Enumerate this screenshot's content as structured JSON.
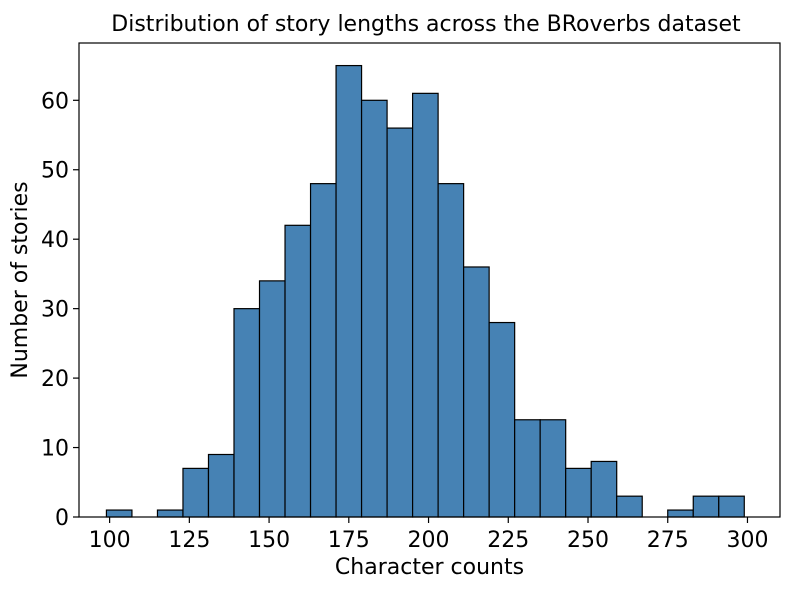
{
  "chart_data": {
    "type": "bar",
    "title": "Distribution of story lengths across the BRoverbs dataset",
    "xlabel": "Character counts",
    "ylabel": "Number of stories",
    "xlim": [
      90.4,
      310.2
    ],
    "ylim": [
      0,
      68.25
    ],
    "xticks": [
      100,
      125,
      150,
      175,
      200,
      225,
      250,
      275,
      300
    ],
    "yticks": [
      0,
      10,
      20,
      30,
      40,
      50,
      60
    ],
    "bin_width": 8.0,
    "bin_edges": [
      99,
      107,
      115,
      123,
      131,
      139,
      147,
      155,
      163,
      171,
      179,
      187,
      195,
      203,
      211,
      219,
      227,
      235,
      243,
      251,
      259,
      267,
      275,
      283,
      291,
      299
    ],
    "values": [
      1,
      0,
      1,
      7,
      9,
      30,
      34,
      42,
      48,
      65,
      60,
      56,
      61,
      48,
      36,
      28,
      14,
      14,
      7,
      8,
      3,
      0,
      1,
      3,
      3
    ],
    "bar_color": "#4682b4",
    "edge_color": "#000000",
    "grid": false,
    "legend": "none"
  }
}
